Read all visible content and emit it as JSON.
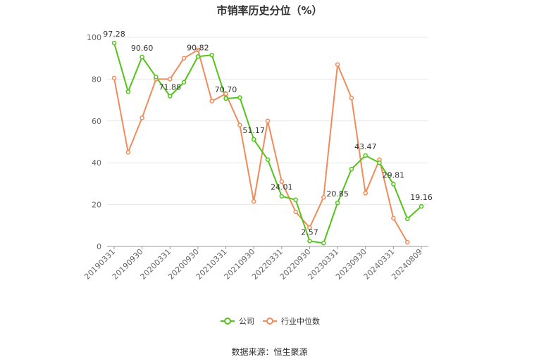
{
  "title": "市销率历史分位（%）",
  "source": "数据来源：恒生聚源",
  "colors": {
    "company": "#52c41a",
    "industry": "#f08c5a",
    "grid": "#e8e8e8",
    "axis": "#999999"
  },
  "chart_data": {
    "type": "line",
    "title": "市销率历史分位（%）",
    "ylim": [
      0,
      100
    ],
    "yticks": [
      0,
      20,
      40,
      60,
      80,
      100
    ],
    "grid": true,
    "legend_placement": "bottom",
    "x": [
      "20190331",
      "20190630",
      "20190930",
      "20191231",
      "20200331",
      "20200630",
      "20200930",
      "20201231",
      "20210331",
      "20210630",
      "20210930",
      "20211231",
      "20220331",
      "20220630",
      "20220930",
      "20221231",
      "20230331",
      "20230630",
      "20230930",
      "20231231",
      "20240331",
      "20240630",
      "20240809"
    ],
    "xtick_labels": [
      "20190331",
      "20190930",
      "20200331",
      "20200930",
      "20210331",
      "20210930",
      "20220331",
      "20220930",
      "20230331",
      "20230930",
      "20240331",
      "20240809"
    ],
    "series": [
      {
        "name": "公司",
        "values": [
          97.28,
          74.0,
          90.6,
          81.0,
          71.88,
          78.5,
          90.82,
          91.5,
          70.7,
          71.2,
          51.17,
          41.5,
          24.01,
          22.3,
          2.57,
          1.6,
          20.85,
          37.0,
          43.47,
          40.0,
          29.81,
          13.2,
          19.16
        ]
      },
      {
        "name": "行业中位数",
        "values": [
          80.5,
          45.0,
          61.5,
          80.0,
          80.0,
          90.0,
          94.0,
          69.5,
          73.0,
          58.0,
          21.5,
          60.0,
          31.0,
          16.5,
          9.0,
          23.5,
          87.0,
          71.0,
          25.5,
          41.5,
          13.5,
          2.0,
          null
        ]
      }
    ],
    "data_labels": [
      {
        "series": 0,
        "index": 0,
        "text": "97.28"
      },
      {
        "series": 0,
        "index": 2,
        "text": "90.60"
      },
      {
        "series": 0,
        "index": 4,
        "text": "71.88"
      },
      {
        "series": 0,
        "index": 6,
        "text": "90.82"
      },
      {
        "series": 0,
        "index": 8,
        "text": "70.70"
      },
      {
        "series": 0,
        "index": 10,
        "text": "51.17"
      },
      {
        "series": 0,
        "index": 12,
        "text": "24.01"
      },
      {
        "series": 0,
        "index": 14,
        "text": "2.57"
      },
      {
        "series": 0,
        "index": 16,
        "text": "20.85"
      },
      {
        "series": 0,
        "index": 18,
        "text": "43.47"
      },
      {
        "series": 0,
        "index": 20,
        "text": "29.81"
      },
      {
        "series": 0,
        "index": 22,
        "text": "19.16"
      }
    ]
  }
}
